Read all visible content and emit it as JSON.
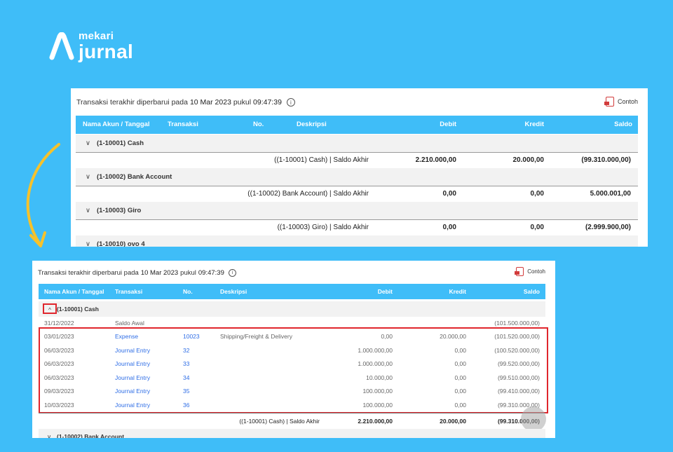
{
  "brand": {
    "sub": "mekari",
    "main": "jurnal"
  },
  "panel_top": {
    "updated_prefix": "Transaksi terakhir diperbarui pada",
    "updated_date": "10 Mar 2023",
    "updated_mid": "pukul",
    "updated_time": "09:47:39",
    "info_symbol": "i",
    "contoh_label": "Contoh",
    "headers": [
      "Nama Akun / Tanggal",
      "Transaksi",
      "No.",
      "Deskripsi",
      "Debit",
      "Kredit",
      "Saldo"
    ],
    "groups": [
      {
        "name": "(1-10001) Cash",
        "chevron": "∨",
        "total_desc": "((1-10001) Cash) | Saldo Akhir",
        "debit": "2.210.000,00",
        "kredit": "20.000,00",
        "saldo": "(99.310.000,00)"
      },
      {
        "name": "(1-10002) Bank Account",
        "chevron": "∨",
        "total_desc": "((1-10002) Bank Account) | Saldo Akhir",
        "debit": "0,00",
        "kredit": "0,00",
        "saldo": "5.000.001,00"
      },
      {
        "name": "(1-10003) Giro",
        "chevron": "∨",
        "total_desc": "((1-10003) Giro) | Saldo Akhir",
        "debit": "0,00",
        "kredit": "0,00",
        "saldo": "(2.999.900,00)"
      },
      {
        "name": "(1-10010) ovo 4",
        "chevron": "∨"
      }
    ]
  },
  "panel_bottom": {
    "updated_prefix": "Transaksi terakhir diperbarui pada",
    "updated_date": "10 Mar 2023",
    "updated_mid": "pukul",
    "updated_time": "09:47:39",
    "info_symbol": "i",
    "contoh_label": "Contoh",
    "headers": [
      "Nama Akun / Tanggal",
      "Transaksi",
      "No.",
      "Deskripsi",
      "Debit",
      "Kredit",
      "Saldo"
    ],
    "group": {
      "name": "(1-10001) Cash",
      "chevron": "^"
    },
    "opening": {
      "date": "31/12/2022",
      "label": "Saldo Awal",
      "saldo": "(101.500.000,00)"
    },
    "rows": [
      {
        "date": "03/01/2023",
        "trx": "Expense",
        "no": "10023",
        "desc": "Shipping/Freight & Delivery",
        "debit": "0,00",
        "kredit": "20.000,00",
        "saldo": "(101.520.000,00)"
      },
      {
        "date": "06/03/2023",
        "trx": "Journal Entry",
        "no": "32",
        "desc": "",
        "debit": "1.000.000,00",
        "kredit": "0,00",
        "saldo": "(100.520.000,00)"
      },
      {
        "date": "06/03/2023",
        "trx": "Journal Entry",
        "no": "33",
        "desc": "",
        "debit": "1.000.000,00",
        "kredit": "0,00",
        "saldo": "(99.520.000,00)"
      },
      {
        "date": "06/03/2023",
        "trx": "Journal Entry",
        "no": "34",
        "desc": "",
        "debit": "10.000,00",
        "kredit": "0,00",
        "saldo": "(99.510.000,00)"
      },
      {
        "date": "09/03/2023",
        "trx": "Journal Entry",
        "no": "35",
        "desc": "",
        "debit": "100.000,00",
        "kredit": "0,00",
        "saldo": "(99.410.000,00)"
      },
      {
        "date": "10/03/2023",
        "trx": "Journal Entry",
        "no": "36",
        "desc": "",
        "debit": "100.000,00",
        "kredit": "0,00",
        "saldo": "(99.310.000,00)"
      }
    ],
    "total": {
      "desc": "((1-10001) Cash) | Saldo Akhir",
      "debit": "2.210.000,00",
      "kredit": "20.000,00",
      "saldo": "(99.310.000,00)"
    },
    "next_group": {
      "name": "(1-10002) Bank Account",
      "chevron": "∨"
    }
  },
  "colors": {
    "background": "#3fbdf8",
    "header": "#3fbdf8",
    "link": "#2f6ee6",
    "highlight": "#e0262d",
    "arrow": "#f6c22b"
  }
}
